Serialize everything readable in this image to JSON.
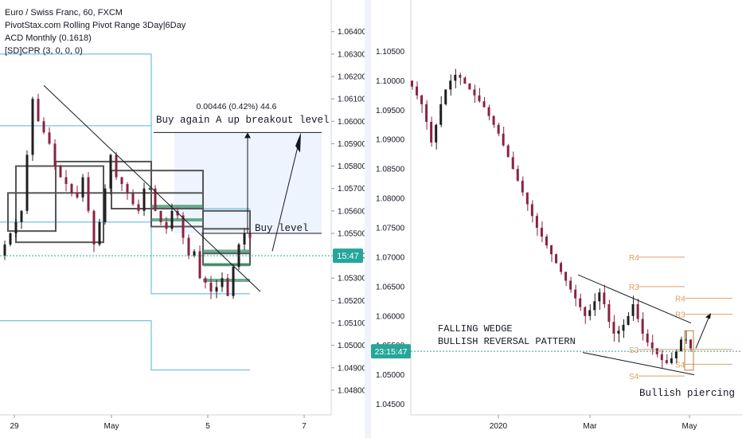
{
  "legend": {
    "title": "Euro / Swiss Franc, 60, FXCM",
    "indicator1": "PivotStax.com Rolling Pivot Range 3Day|6Day",
    "indicator2": "ACD Monthly (0.1618)",
    "indicator3": "[SD]CPR (3, 0, 0, 0)"
  },
  "colors": {
    "up_candle": "#1f1f1f",
    "down_candle": "#8b2240",
    "pivot_line": "#4fb3e0",
    "dark_box": "#555555",
    "green_band": "#3a8f6a",
    "price_tag": "#26a69a",
    "orange_level": "#e0a060"
  },
  "chart_data": [
    {
      "type": "line",
      "subtype": "candlestick",
      "title": "Euro / Swiss Franc, 60, FXCM",
      "xlabel": "",
      "ylabel": "",
      "x_ticks": [
        "29",
        "May",
        "5",
        "7"
      ],
      "y_ticks": [
        "1.06400",
        "1.06300",
        "1.06200",
        "1.06100",
        "1.06000",
        "1.05900",
        "1.05800",
        "1.05700",
        "1.05600",
        "1.05500",
        "1.05400",
        "1.05300",
        "1.05200",
        "1.05100",
        "1.05000",
        "1.04900",
        "1.04800"
      ],
      "ylim": [
        1.0475,
        1.0647
      ],
      "current_price_label": "15:47",
      "current_price": 1.054,
      "close_series": [
        1.0545,
        1.055,
        1.0555,
        1.056,
        1.0585,
        1.061,
        1.06,
        1.0595,
        1.059,
        1.058,
        1.0575,
        1.0572,
        1.0568,
        1.0566,
        1.0575,
        1.056,
        1.0545,
        1.0555,
        1.057,
        1.0585,
        1.0575,
        1.0572,
        1.0568,
        1.0563,
        1.056,
        1.057,
        1.057,
        1.056,
        1.0555,
        1.0552,
        1.056,
        1.0558,
        1.0548,
        1.054,
        1.0542,
        1.053,
        1.0528,
        1.0524,
        1.0526,
        1.053,
        1.0522,
        1.0535,
        1.0545,
        1.055,
        1.0548
      ],
      "annotations": [
        {
          "text": "0.00446 (0.42%) 44.6"
        },
        {
          "text": "Buy again A up  breakout level",
          "price": 1.0595
        },
        {
          "text": "Buy level",
          "price": 1.055
        }
      ]
    },
    {
      "type": "line",
      "subtype": "candlestick",
      "title": "",
      "xlabel": "",
      "ylabel": "",
      "x_ticks": [
        "2020",
        "Mar",
        "May"
      ],
      "y_ticks": [
        "1.10500",
        "1.10000",
        "1.09500",
        "1.09000",
        "1.08500",
        "1.08000",
        "1.07500",
        "1.07000",
        "1.06500",
        "1.06000",
        "1.05500",
        "1.05000",
        "1.04500"
      ],
      "ylim": [
        1.044,
        1.1083
      ],
      "current_price_label": "23:15:47",
      "current_price": 1.054,
      "close_series": [
        1.099,
        1.0975,
        1.096,
        1.093,
        1.0895,
        1.0925,
        1.096,
        1.0985,
        1.1,
        1.101,
        1.1005,
        1.0995,
        1.0985,
        1.0975,
        1.0965,
        1.0955,
        1.094,
        1.0925,
        1.091,
        1.089,
        1.087,
        1.085,
        1.083,
        1.081,
        1.079,
        1.077,
        1.075,
        1.0735,
        1.072,
        1.0705,
        1.069,
        1.0675,
        1.066,
        1.0645,
        1.063,
        1.0615,
        1.06,
        1.061,
        1.0625,
        1.064,
        1.062,
        1.059,
        1.057,
        1.0575,
        1.0585,
        1.06,
        1.062,
        1.0595,
        1.057,
        1.0555,
        1.0545,
        1.0535,
        1.0525,
        1.052,
        1.0528,
        1.054,
        1.056,
        1.056,
        1.0545
      ],
      "levels": [
        {
          "label": "R4",
          "price": 1.07
        },
        {
          "label": "R3",
          "price": 1.065
        },
        {
          "label": "R4",
          "price": 1.063
        },
        {
          "label": "R3",
          "price": 1.0603
        },
        {
          "label": "S3",
          "price": 1.0543
        },
        {
          "label": "S4",
          "price": 1.0518
        },
        {
          "label": "S4",
          "price": 1.0498
        }
      ],
      "annotations": [
        {
          "text": "FALLING WEDGE"
        },
        {
          "text": "BULLISH REVERSAL PATTERN"
        },
        {
          "text": "Bullish piercing"
        }
      ]
    }
  ]
}
